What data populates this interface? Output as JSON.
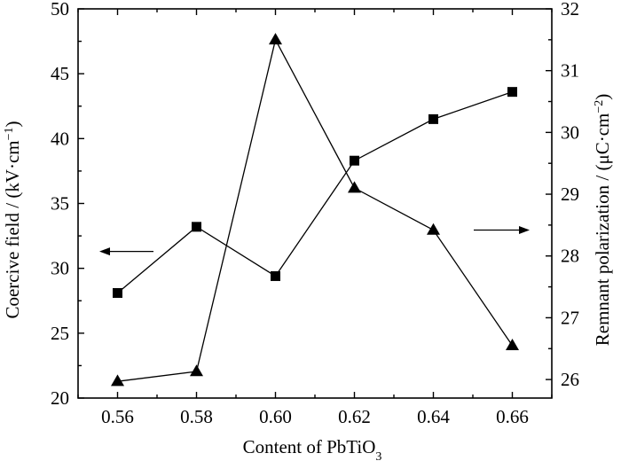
{
  "chart_data": {
    "type": "line",
    "x": [
      0.56,
      0.58,
      0.6,
      0.62,
      0.64,
      0.66
    ],
    "x_tick_labels": [
      "0.56",
      "0.58",
      "0.60",
      "0.62",
      "0.64",
      "0.66"
    ],
    "xlim": [
      0.55,
      0.67
    ],
    "y_left_ticks": [
      "20",
      "25",
      "30",
      "35",
      "40",
      "45",
      "50"
    ],
    "ylim_left": [
      20,
      50
    ],
    "y_right_ticks": [
      "26",
      "27",
      "28",
      "29",
      "30",
      "31",
      "32"
    ],
    "ylim_right": [
      25.7,
      32
    ],
    "xlabel": {
      "main": "Content of PbTiO",
      "sub": "3"
    },
    "ylabel_left": {
      "main": "Coercive field / (kV·cm",
      "sup": "−1",
      "tail": ")"
    },
    "ylabel_right": {
      "main": "Remnant polarization / (μC·cm",
      "sup": "−2",
      "tail": ")"
    },
    "series": [
      {
        "marker": "square",
        "axis": "left",
        "values": [
          28.1,
          33.2,
          29.4,
          38.3,
          41.5,
          43.6
        ]
      },
      {
        "marker": "triangle",
        "axis": "right",
        "values": [
          25.97,
          26.13,
          31.5,
          29.1,
          28.42,
          26.55
        ]
      }
    ],
    "grid": false,
    "colors": {
      "series": "#000000",
      "axes": "#000000"
    }
  }
}
